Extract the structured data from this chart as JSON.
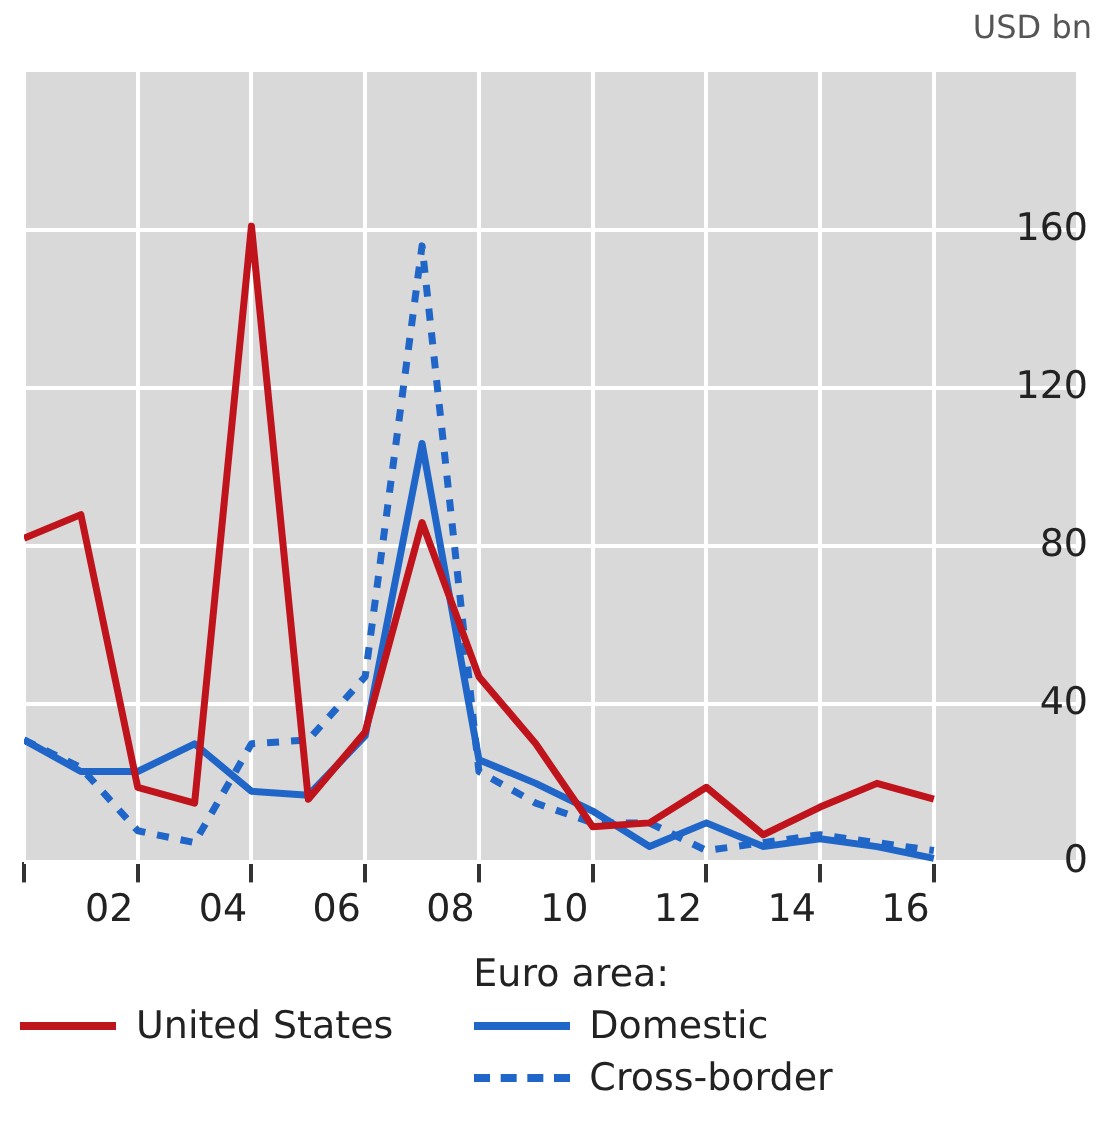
{
  "chart_data": {
    "type": "line",
    "ylabel": "USD bn",
    "legend_title": "Euro area:",
    "legend": "bottom",
    "grid": true,
    "marker": "none",
    "x": [
      2000.5,
      2001.5,
      2002.5,
      2003.5,
      2004.5,
      2005.5,
      2006.5,
      2007.5,
      2008.5,
      2009.5,
      2010.5,
      2011.5,
      2012.5,
      2013.5,
      2014.5,
      2015.5,
      2016.5
    ],
    "xlim": [
      2000.5,
      2019
    ],
    "xticks": [
      {
        "value": 2000.5,
        "label": null
      },
      {
        "value": 2002,
        "label": "02"
      },
      {
        "value": 2002.5,
        "label": null
      },
      {
        "value": 2004,
        "label": "04"
      },
      {
        "value": 2004.5,
        "label": null
      },
      {
        "value": 2006,
        "label": "06"
      },
      {
        "value": 2006.5,
        "label": null
      },
      {
        "value": 2008,
        "label": "08"
      },
      {
        "value": 2008.5,
        "label": null
      },
      {
        "value": 2010,
        "label": "10"
      },
      {
        "value": 2010.5,
        "label": null
      },
      {
        "value": 2012,
        "label": "12"
      },
      {
        "value": 2012.5,
        "label": null
      },
      {
        "value": 2014,
        "label": "14"
      },
      {
        "value": 2014.5,
        "label": null
      },
      {
        "value": 2016,
        "label": "16"
      },
      {
        "value": 2016.5,
        "label": null
      }
    ],
    "ylim": [
      0,
      200
    ],
    "yticks": [
      0,
      40,
      80,
      120,
      160
    ],
    "series": [
      {
        "name": "United States",
        "color": "#c0141c",
        "line_style": "solid",
        "values": [
          82,
          88,
          19,
          15,
          161,
          16,
          33,
          86,
          47,
          30,
          9,
          10,
          19,
          7,
          14,
          20,
          16
        ]
      },
      {
        "name": "Domestic",
        "color": "#1f66c8",
        "line_style": "solid",
        "values": [
          31,
          23,
          23,
          30,
          18,
          17,
          32,
          106,
          26,
          20,
          13,
          4,
          10,
          4,
          6,
          4,
          1
        ]
      },
      {
        "name": "Cross-border",
        "color": "#1f66c8",
        "line_style": "dashed",
        "values": [
          31,
          24,
          8,
          5,
          30,
          31,
          47,
          156,
          23,
          15,
          10,
          10,
          3,
          5,
          7,
          5,
          3
        ]
      }
    ]
  }
}
